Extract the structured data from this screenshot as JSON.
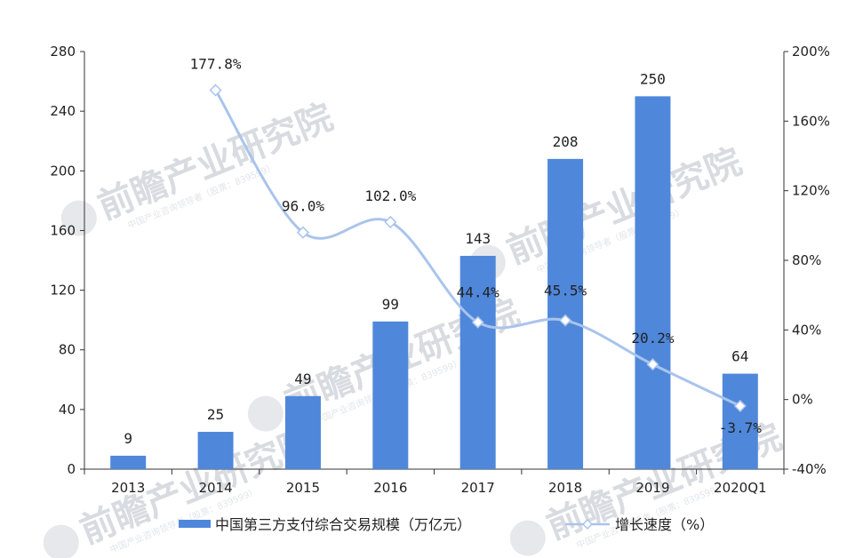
{
  "watermark": {
    "brand": "前瞻产业研究院",
    "sub": "中国产业咨询领导者（股票：839599）"
  },
  "chart_data": {
    "type": "bar+line",
    "categories": [
      "2013",
      "2014",
      "2015",
      "2016",
      "2017",
      "2018",
      "2019",
      "2020Q1"
    ],
    "series": [
      {
        "name": "中国第三方支付综合交易规模（万亿元）",
        "kind": "bar",
        "axis": "left",
        "color": "#4f87db",
        "values": [
          9,
          25,
          49,
          99,
          143,
          208,
          250,
          64
        ],
        "labels": [
          "9",
          "25",
          "49",
          "99",
          "143",
          "208",
          "250",
          "64"
        ]
      },
      {
        "name": "增长速度（%）",
        "kind": "line",
        "axis": "right",
        "color": "#a9c4ec",
        "values": [
          null,
          177.8,
          96.0,
          102.0,
          44.4,
          45.5,
          20.2,
          -3.7
        ],
        "labels": [
          "",
          "177.8%",
          "96.0%",
          "102.0%",
          "44.4%",
          "45.5%",
          "20.2%",
          "-3.7%"
        ]
      }
    ],
    "y_left": {
      "min": 0,
      "max": 280,
      "ticks": [
        "0",
        "40",
        "80",
        "120",
        "160",
        "200",
        "240",
        "280"
      ]
    },
    "y_right": {
      "min": -40,
      "max": 200,
      "ticks": [
        "-40%",
        "0%",
        "40%",
        "80%",
        "120%",
        "160%",
        "200%"
      ]
    },
    "grid": false,
    "legend_position": "bottom"
  }
}
